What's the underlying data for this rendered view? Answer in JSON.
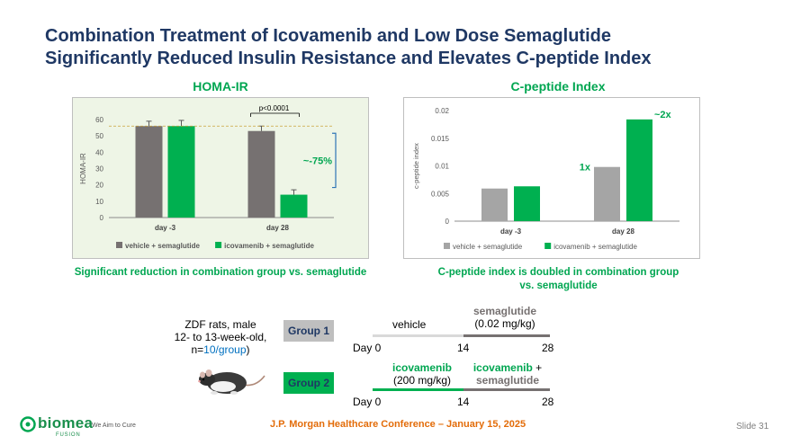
{
  "title_line1": "Combination Treatment of Icovamenib and Low Dose Semaglutide",
  "title_line2": "Significantly Reduced Insulin Resistance and Elevates C-peptide Index",
  "chart_data": [
    {
      "type": "bar",
      "title": "HOMA-IR",
      "ylabel": "HOMA-IR",
      "xlabel": "",
      "ylim": [
        0,
        60
      ],
      "yticks": [
        0,
        10,
        20,
        30,
        40,
        50,
        60
      ],
      "categories": [
        "day -3",
        "day 28"
      ],
      "series": [
        {
          "name": "vehicle + semaglutide",
          "values": [
            56,
            53
          ],
          "errors": [
            3,
            3
          ],
          "color": "#767171"
        },
        {
          "name": "icovamenib + semaglutide",
          "values": [
            56,
            14
          ],
          "errors": [
            3.5,
            3
          ],
          "color": "#00b050"
        }
      ],
      "annotations": {
        "pvalue": "p<0.0001",
        "change": "~-75%",
        "reference_line": 56
      },
      "legend": "bottom",
      "grid": false
    },
    {
      "type": "bar",
      "title": "C-peptide Index",
      "ylabel": "c-peptide index",
      "xlabel": "",
      "ylim": [
        0,
        0.02
      ],
      "yticks": [
        0,
        0.005,
        0.01,
        0.015,
        0.02
      ],
      "ytick_labels": [
        "0",
        "0.005",
        "0.01",
        "0.015",
        "0.02"
      ],
      "categories": [
        "day -3",
        "day 28"
      ],
      "series": [
        {
          "name": "vehicle + semaglutide",
          "values": [
            0.0059,
            0.0098
          ],
          "color": "#a5a5a5"
        },
        {
          "name": "icovamenib + semaglutide",
          "values": [
            0.0063,
            0.0184
          ],
          "color": "#00b050"
        }
      ],
      "annotations": {
        "label_1x": "1x",
        "label_2x": "~2x"
      },
      "legend": "bottom",
      "grid": false
    }
  ],
  "captions": {
    "left": "Significant reduction in combination group vs. semaglutide",
    "right_line1": "C-peptide index is doubled in combination group",
    "right_line2": "vs. semaglutide"
  },
  "study": {
    "rats_line1": "ZDF rats, male",
    "rats_line2": "12- to 13-week-old,",
    "rats_line3_prefix": "n=",
    "rats_line3_link": "10/group",
    "rats_line3_suffix": ")",
    "group1": {
      "label": "Group 1",
      "phase1": "vehicle",
      "phase2_line1": "semaglutide",
      "phase2_line2": "(0.02 mg/kg)",
      "day_start": "Day 0",
      "day_mid": "14",
      "day_end": "28"
    },
    "group2": {
      "label": "Group 2",
      "phase1_line1": "icovamenib",
      "phase1_line2": "(200 mg/kg)",
      "phase2_line1_bold": "icovamenib",
      "phase2_line1_rest": " +",
      "phase2_line2": "semaglutide",
      "day_start": "Day 0",
      "day_mid": "14",
      "day_end": "28"
    }
  },
  "footer": {
    "brand": "biomea",
    "brand_sub": "FUSION",
    "tagline": "We Aim to Cure",
    "conference": "J.P. Morgan Healthcare Conference – January 15, 2025",
    "slide": "Slide 31"
  },
  "colors": {
    "title": "#1f3864",
    "accent_green": "#00a651",
    "panel_bg": "#eef5e6",
    "group_box": "#bfbfbf",
    "group2_box": "#00b050"
  }
}
